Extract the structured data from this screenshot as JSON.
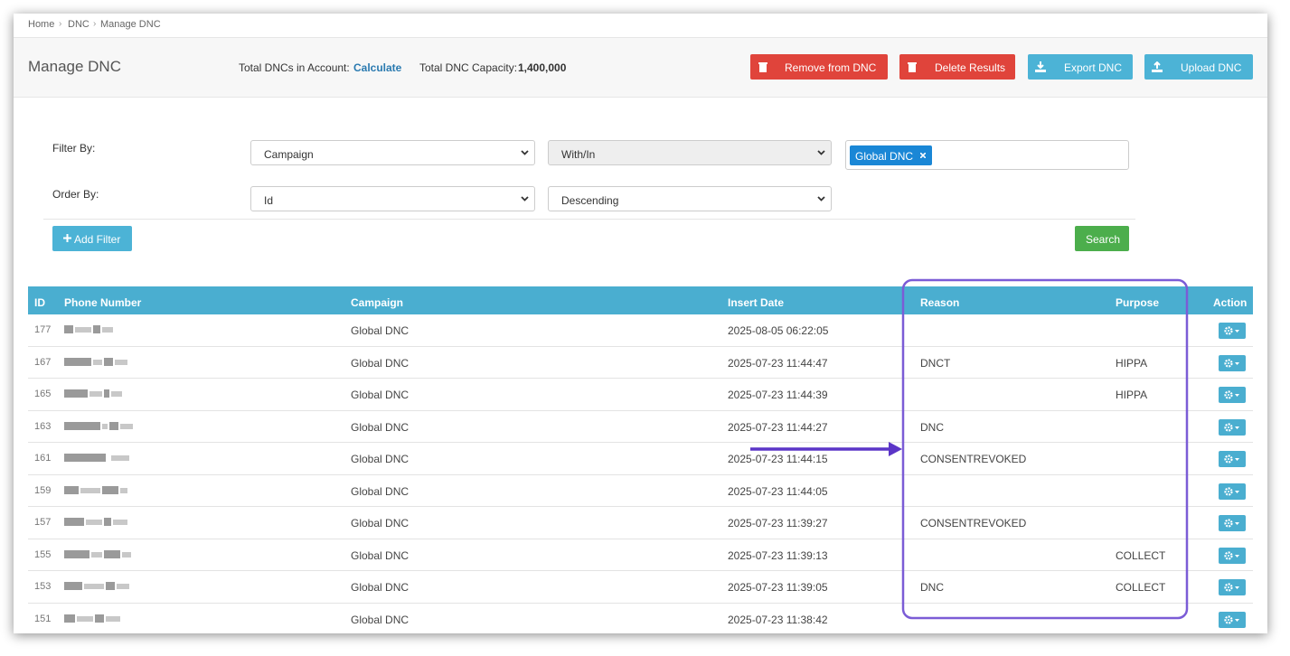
{
  "breadcrumb": [
    "Home",
    "DNC",
    "Manage DNC"
  ],
  "header": {
    "title": "Manage DNC",
    "total_dncs_label": "Total DNCs in Account:",
    "total_dncs_action": "Calculate",
    "capacity_label": "Total DNC Capacity:",
    "capacity_value": "1,400,000",
    "buttons": [
      "Remove from DNC",
      "Delete Results",
      "Export DNC",
      "Upload DNC"
    ]
  },
  "filters": {
    "filter_label": "Filter By:",
    "filter_field": "Campaign",
    "filter_operator": "With/In",
    "filter_tag": "Global DNC",
    "order_label": "Order By:",
    "order_field": "Id",
    "order_direction": "Descending",
    "add_filter": "Add Filter",
    "search": "Search"
  },
  "table": {
    "columns": [
      "ID",
      "Phone Number",
      "Campaign",
      "Insert Date",
      "Reason",
      "Purpose",
      "Action"
    ],
    "rows": [
      {
        "id": 177,
        "campaign": "Global DNC",
        "insert_date": "2025-08-05 06:22:05"
      },
      {
        "id": 167,
        "campaign": "Global DNC",
        "insert_date": "2025-07-23 11:44:47",
        "reason": "DNCT",
        "purpose": "HIPPA"
      },
      {
        "id": 165,
        "campaign": "Global DNC",
        "insert_date": "2025-07-23 11:44:39",
        "purpose": "HIPPA"
      },
      {
        "id": 163,
        "campaign": "Global DNC",
        "insert_date": "2025-07-23 11:44:27",
        "reason": "DNC"
      },
      {
        "id": 161,
        "campaign": "Global DNC",
        "insert_date": "2025-07-23 11:44:15",
        "reason": "CONSENTREVOKED"
      },
      {
        "id": 159,
        "campaign": "Global DNC",
        "insert_date": "2025-07-23 11:44:05"
      },
      {
        "id": 157,
        "campaign": "Global DNC",
        "insert_date": "2025-07-23 11:39:27",
        "reason": "CONSENTREVOKED"
      },
      {
        "id": 155,
        "campaign": "Global DNC",
        "insert_date": "2025-07-23 11:39:13",
        "purpose": "COLLECT"
      },
      {
        "id": 153,
        "campaign": "Global DNC",
        "insert_date": "2025-07-23 11:39:05",
        "reason": "DNC",
        "purpose": "COLLECT"
      },
      {
        "id": 151,
        "campaign": "Global DNC",
        "insert_date": "2025-07-23 11:38:42"
      }
    ]
  }
}
